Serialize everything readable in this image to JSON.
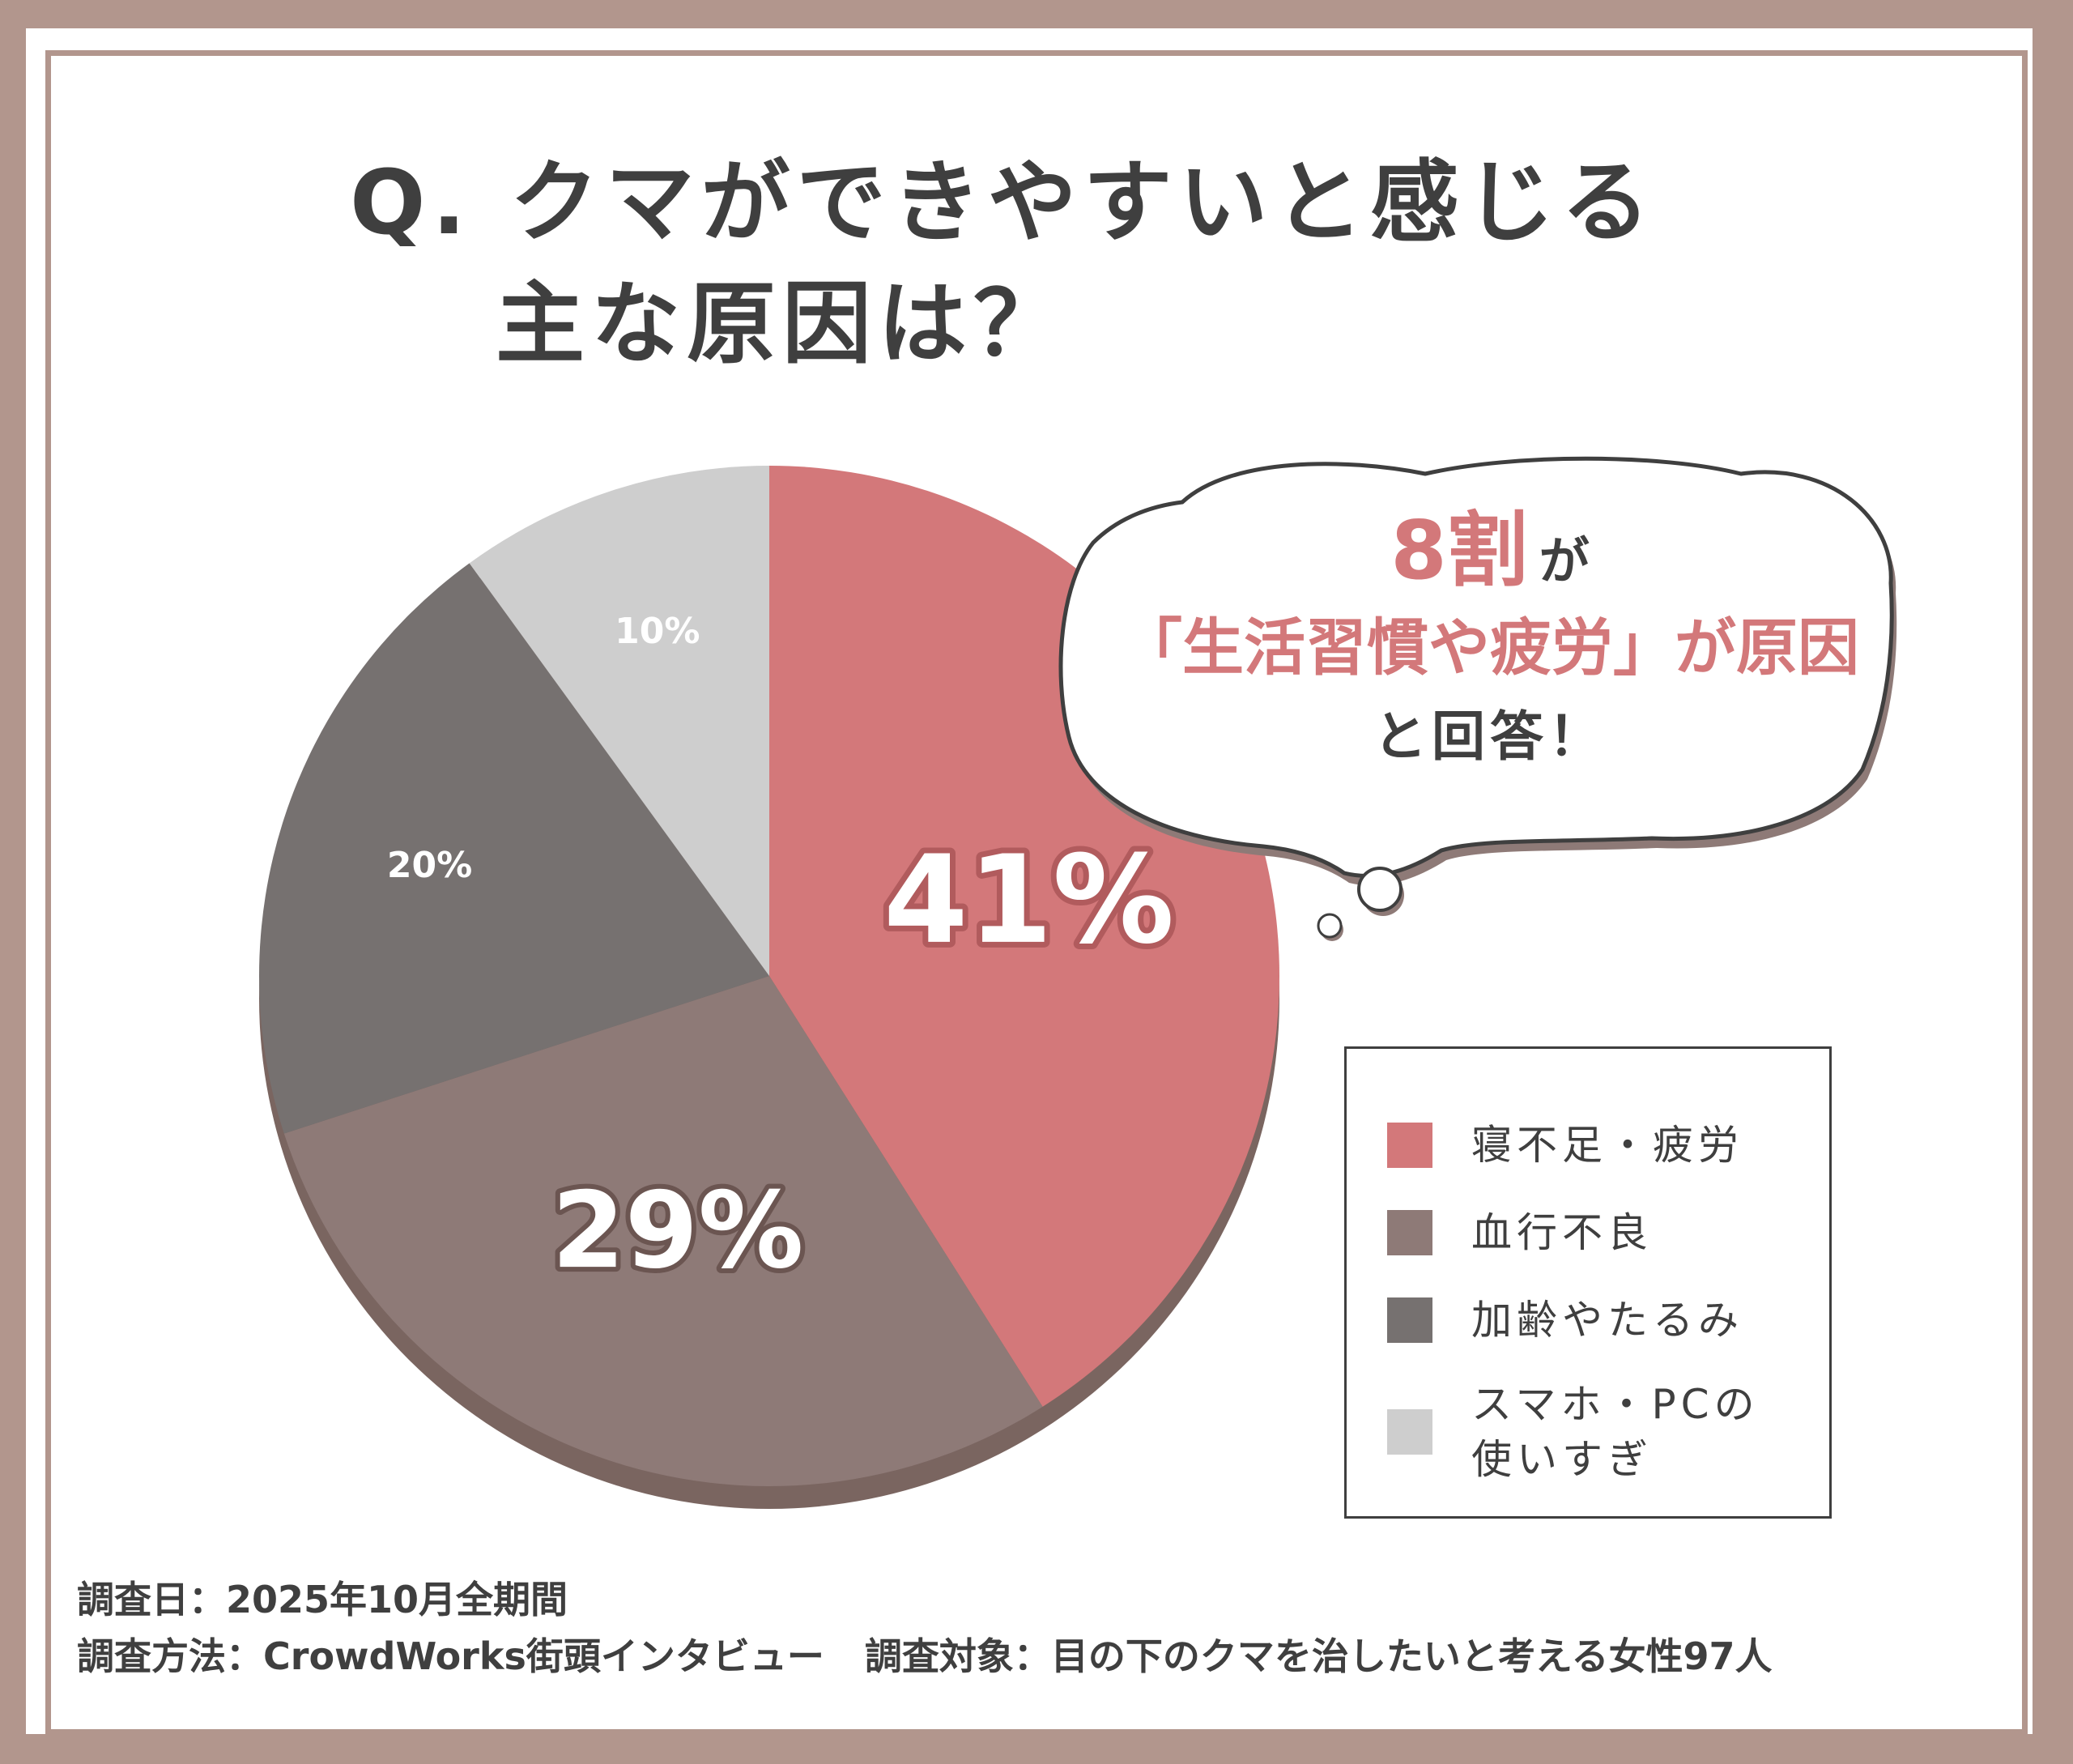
{
  "title": {
    "line1": "Q. クマができやすいと感じる",
    "line2": "主な原因は？"
  },
  "callout": {
    "line1_highlight": "8割",
    "line1_suffix": "が",
    "line2": "「生活習慣や疲労」が原因",
    "line3": "と回答！"
  },
  "chart_data": {
    "type": "pie",
    "categories": [
      "寝不足・疲労",
      "血行不良",
      "加齢やたるみ",
      "スマホ・PCの使いすぎ"
    ],
    "values": [
      41,
      29,
      20,
      10
    ],
    "data_labels": [
      "41%",
      "29%",
      "20%",
      "10%"
    ],
    "colors": [
      "#d3787a",
      "#8e7a77",
      "#767170",
      "#cecece"
    ],
    "legend_position": "right"
  },
  "legend": {
    "items": [
      {
        "label": "寝不足・疲労",
        "color": "#d3787a"
      },
      {
        "label": "血行不良",
        "color": "#8e7a77"
      },
      {
        "label": "加齢やたるみ",
        "color": "#767170"
      },
      {
        "label": "スマホ・PCの\n使いすぎ",
        "color": "#cecece"
      }
    ]
  },
  "footer": {
    "date": "調査日：2025年10月全期間",
    "method": "調査方法：CrowdWorks街頭インタビュー",
    "target": "調査対象：目の下のクマを治したいと考える女性97人"
  }
}
